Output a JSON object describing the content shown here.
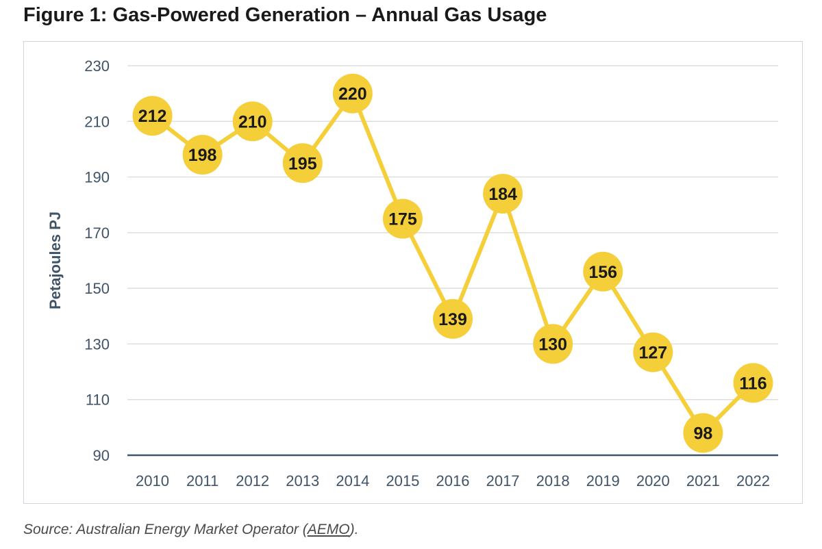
{
  "figure_title": "Figure 1: Gas-Powered Generation – Annual Gas Usage",
  "source": {
    "prefix": "Source: Australian Energy Market Operator (",
    "link": "AEMO",
    "suffix": ")."
  },
  "colors": {
    "line": "#f5cf3a",
    "marker": "#f5cf3a",
    "grid": "#d7d7d7",
    "axis": "#3f5468",
    "axis_label": "#3f5468",
    "tick_label": "#3f5468",
    "data_label": "#1a1a1a"
  },
  "chart_data": {
    "type": "line",
    "title": "",
    "xlabel": "",
    "ylabel": "Petajoules PJ",
    "ylim": [
      90,
      230
    ],
    "yticks": [
      90,
      110,
      130,
      150,
      170,
      190,
      210,
      230
    ],
    "categories": [
      "2010",
      "2011",
      "2012",
      "2013",
      "2014",
      "2015",
      "2016",
      "2017",
      "2018",
      "2019",
      "2020",
      "2021",
      "2022"
    ],
    "series": [
      {
        "values": [
          212,
          198,
          210,
          195,
          220,
          175,
          139,
          184,
          130,
          156,
          127,
          98,
          116
        ]
      }
    ],
    "grid": true,
    "legend": "none"
  }
}
